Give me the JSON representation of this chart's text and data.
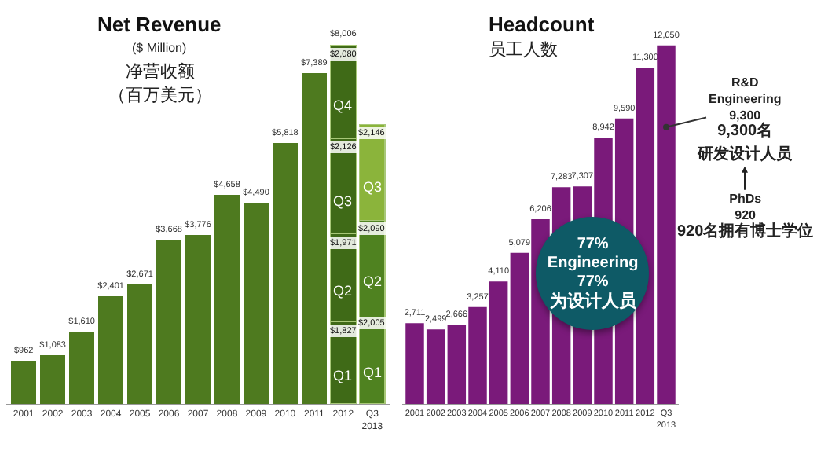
{
  "chart_data": [
    {
      "type": "bar",
      "title": "Net Revenue",
      "subtitle": "($ Million)",
      "categories": [
        "2001",
        "2002",
        "2003",
        "2004",
        "2005",
        "2006",
        "2007",
        "2008",
        "2009",
        "2010",
        "2011",
        "2012",
        "Q3\n2013"
      ],
      "stacked": true,
      "tick_labels": "x",
      "series": [
        {
          "color": "#4e7a1f",
          "values": [
            962,
            1083,
            1610,
            2401,
            2671,
            3668,
            3776,
            4658,
            4490,
            5818,
            7389,
            null,
            null
          ],
          "value_labels": [
            "$962",
            "$1,083",
            "$1,610",
            "$2,401",
            "$2,671",
            "$3,668",
            "$3,776",
            "$4,658",
            "$4,490",
            "$5,818",
            "$7,389",
            null,
            null
          ]
        },
        {
          "name": "Q1",
          "colors": [
            null,
            null,
            null,
            null,
            null,
            null,
            null,
            null,
            null,
            null,
            null,
            "#3f6a17",
            "#4f8220"
          ],
          "values": [
            null,
            null,
            null,
            null,
            null,
            null,
            null,
            null,
            null,
            null,
            null,
            1827,
            2005
          ],
          "value_labels": [
            null,
            null,
            null,
            null,
            null,
            null,
            null,
            null,
            null,
            null,
            null,
            "$1,827",
            "$2,005"
          ]
        },
        {
          "name": "Q2",
          "colors": [
            null,
            null,
            null,
            null,
            null,
            null,
            null,
            null,
            null,
            null,
            null,
            "#3f6a17",
            "#4f8220"
          ],
          "values": [
            null,
            null,
            null,
            null,
            null,
            null,
            null,
            null,
            null,
            null,
            null,
            1971,
            2090
          ],
          "value_labels": [
            null,
            null,
            null,
            null,
            null,
            null,
            null,
            null,
            null,
            null,
            null,
            "$1,971",
            "$2,090"
          ]
        },
        {
          "name": "Q3",
          "colors": [
            null,
            null,
            null,
            null,
            null,
            null,
            null,
            null,
            null,
            null,
            null,
            "#3f6a17",
            "#8bb43b"
          ],
          "values": [
            null,
            null,
            null,
            null,
            null,
            null,
            null,
            null,
            null,
            null,
            null,
            2126,
            2146
          ],
          "value_labels": [
            null,
            null,
            null,
            null,
            null,
            null,
            null,
            null,
            null,
            null,
            null,
            "$2,126",
            "$2,146"
          ]
        },
        {
          "name": "Q4",
          "color": "#3f6a17",
          "values": [
            null,
            null,
            null,
            null,
            null,
            null,
            null,
            null,
            null,
            null,
            null,
            2080,
            null
          ],
          "value_labels": [
            null,
            null,
            null,
            null,
            null,
            null,
            null,
            null,
            null,
            null,
            null,
            "$2,080",
            null
          ]
        }
      ],
      "totals": [
        null,
        null,
        null,
        null,
        null,
        null,
        null,
        null,
        null,
        null,
        null,
        "$8,006",
        null
      ],
      "annotations": [
        "净营收额",
        "（百万美元）"
      ]
    },
    {
      "type": "bar",
      "title": "Headcount",
      "subtitle": "员工人数",
      "categories": [
        "2001",
        "2002",
        "2003",
        "2004",
        "2005",
        "2006",
        "2007",
        "2008",
        "2009",
        "2010",
        "2011",
        "2012",
        "Q3\n2013"
      ],
      "tick_labels": "x",
      "series": [
        {
          "color": "#7a1a7a",
          "values": [
            2711,
            2499,
            2666,
            3257,
            4110,
            5079,
            6206,
            7283,
            7307,
            8942,
            9590,
            11300,
            12050
          ],
          "value_labels": [
            "2,711",
            "2,499",
            "2,666",
            "3,257",
            "4,110",
            "5,079",
            "6,206",
            "7,283",
            "7,307",
            "8,942",
            "9,590",
            "11,300",
            "12,050"
          ]
        }
      ],
      "annotations": [
        "77%\nEngineering\n77%\n为设计人员",
        {
          "text": "R&D\nEngineering\n9,300\n9,300名",
          "x": "Q3\n2013",
          "y": 9300
        },
        "研发设计人员",
        "PhDs\n920\n920名拥有博士学位"
      ]
    }
  ]
}
